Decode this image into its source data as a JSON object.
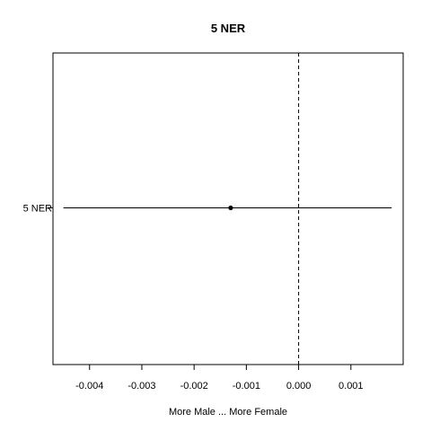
{
  "chart_data": {
    "type": "scatter",
    "title": "5 NER",
    "xlabel": "More Male ... More Female",
    "ylabel": "",
    "xlim": [
      -0.0047,
      0.002
    ],
    "x_ticks": [
      -0.004,
      -0.003,
      -0.002,
      -0.001,
      0.0,
      0.001
    ],
    "x_tick_labels": [
      "-0.004",
      "-0.003",
      "-0.002",
      "-0.001",
      "0.000",
      "0.001"
    ],
    "reference_line_x": 0.0,
    "grid": false,
    "categories": [
      "5 NER"
    ],
    "points": [
      {
        "label": "5 NER",
        "estimate": -0.0013,
        "lower": -0.0045,
        "upper": 0.00178
      }
    ]
  }
}
